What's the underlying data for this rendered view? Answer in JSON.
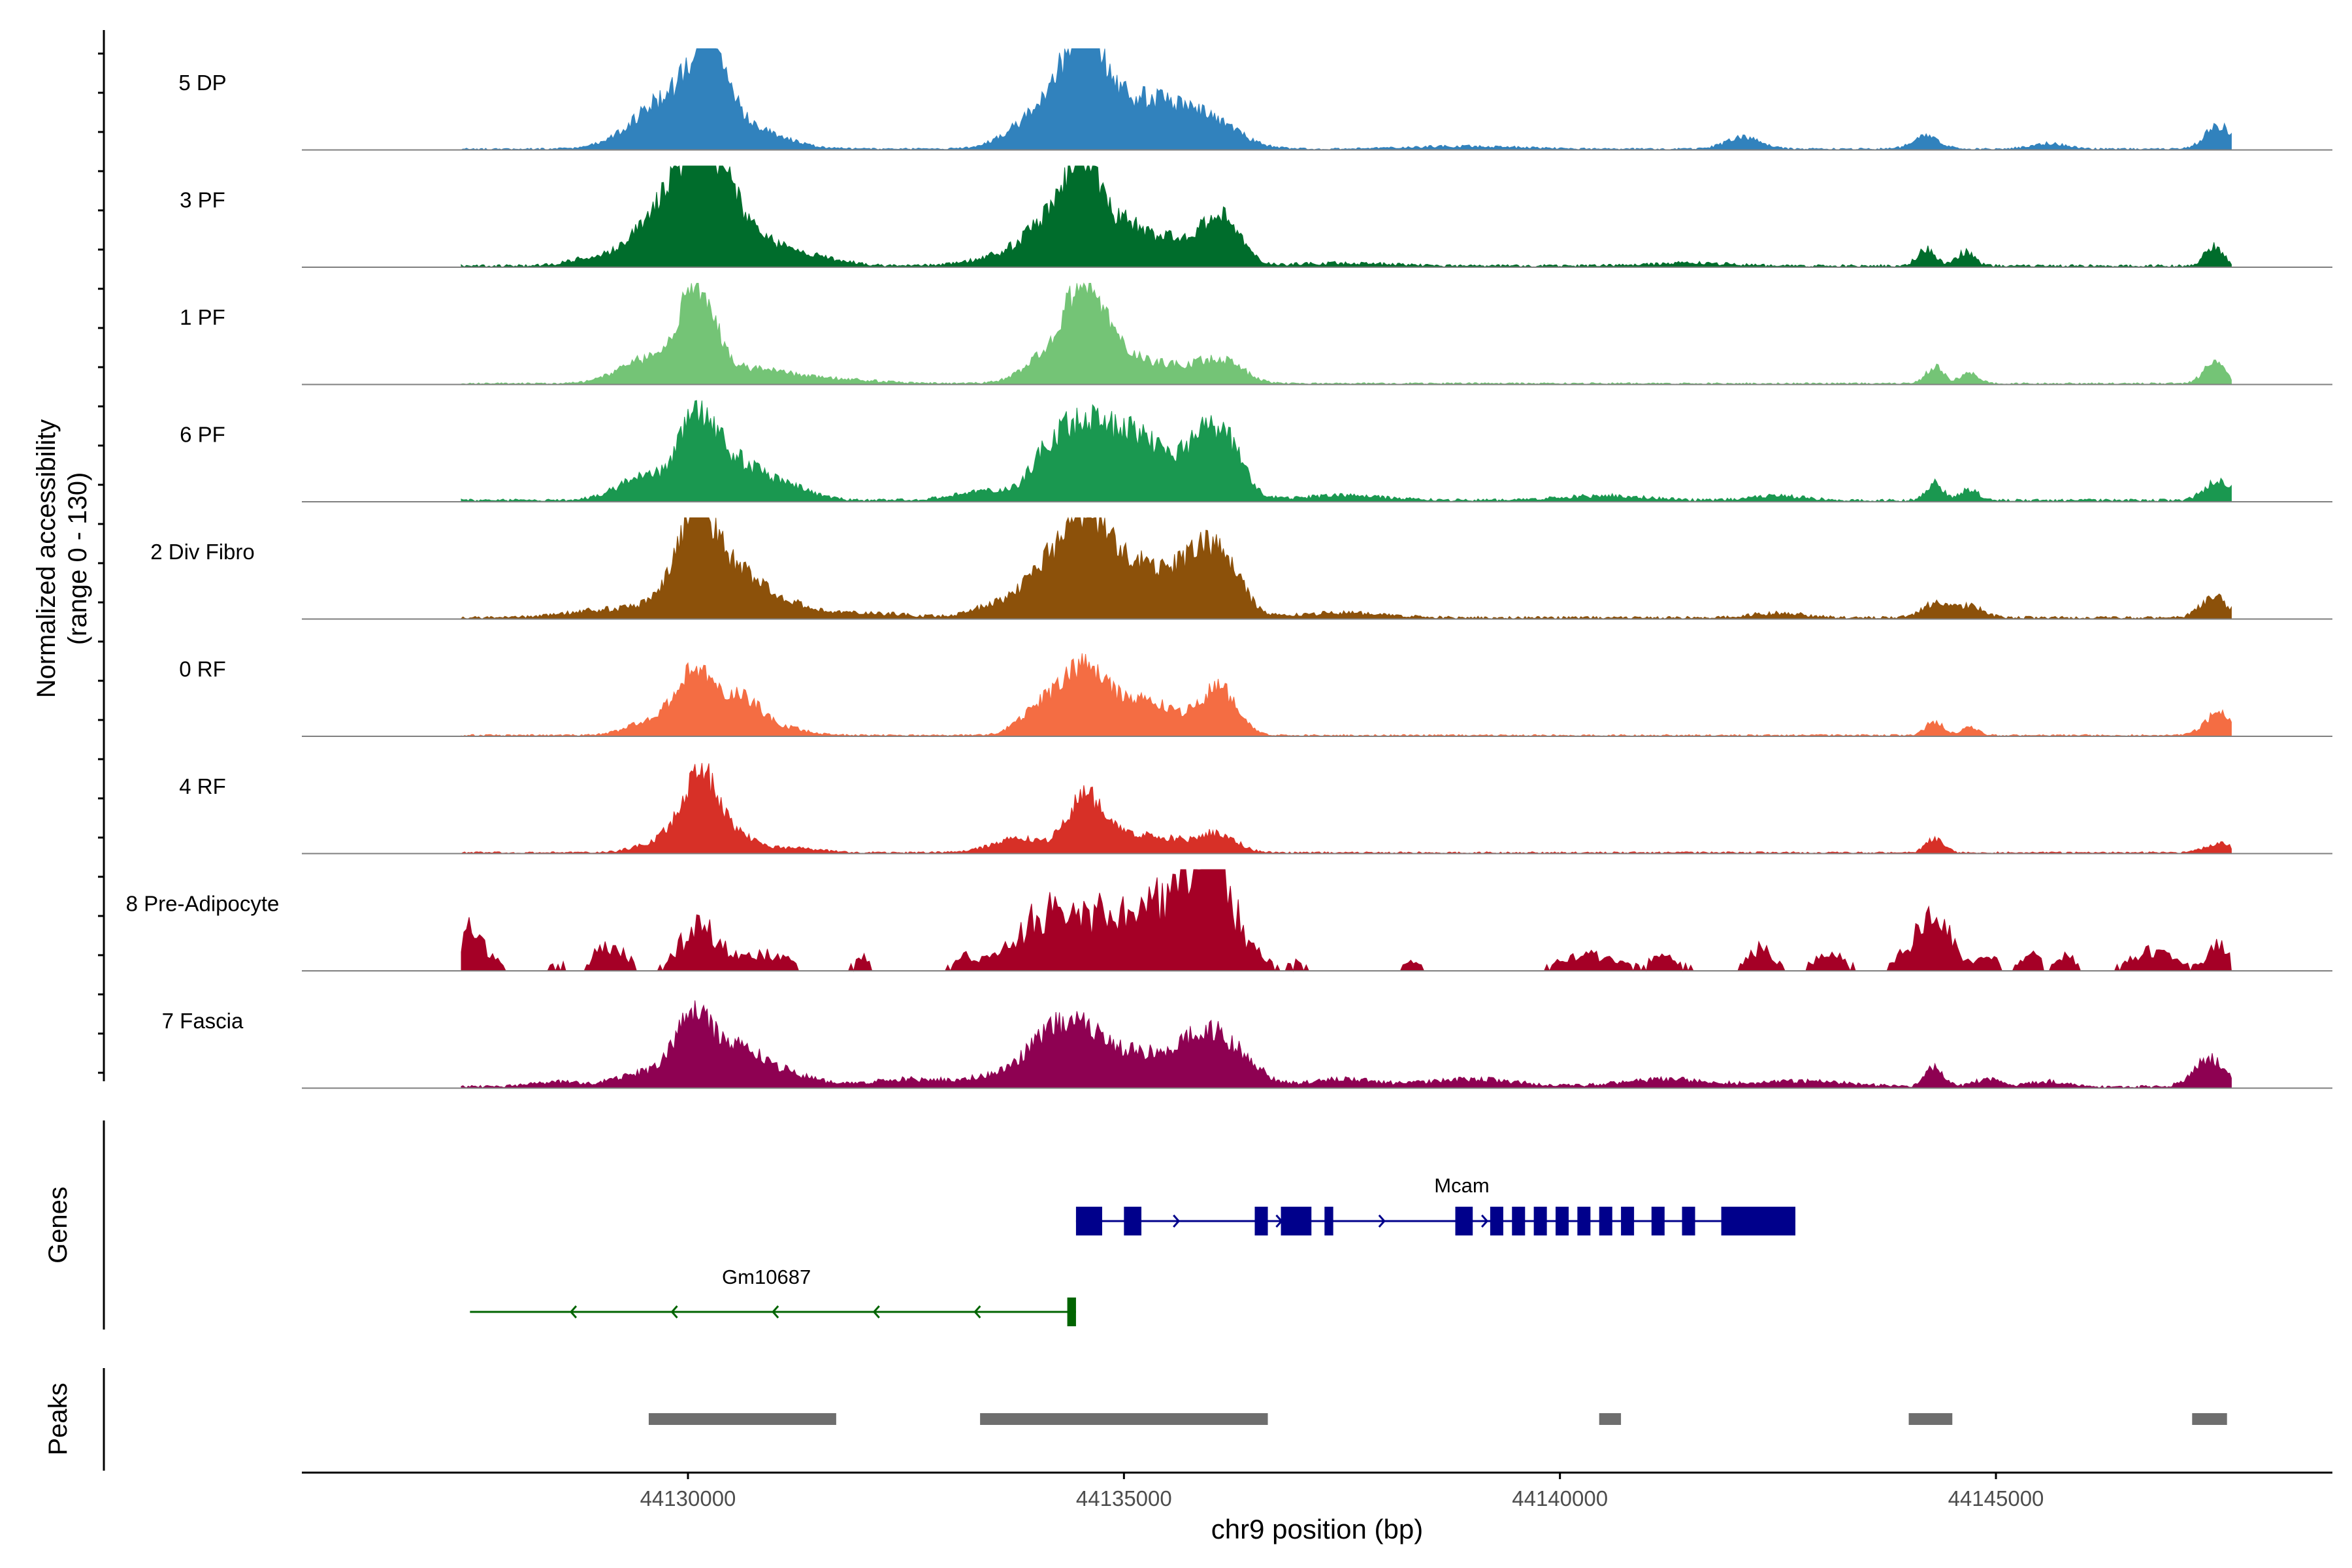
{
  "chart_data": {
    "type": "area",
    "ylabel": "Normalized accessibility",
    "ylabel_range": "(range 0 - 130)",
    "ylim": [
      0,
      130
    ],
    "xlabel": "chr9 position (bp)",
    "xlim": [
      44126300,
      44148500
    ],
    "xticks": [
      44130000,
      44135000,
      44140000,
      44145000
    ],
    "xtick_labels": [
      "44130000",
      "44135000",
      "44140000",
      "44145000"
    ],
    "track_labels": {
      "genes": "Genes",
      "peaks": "Peaks"
    },
    "tracks": [
      {
        "name": "5 DP",
        "color": "#3182BD",
        "baseline": 2,
        "peaks": [
          [
            44129800,
            55,
            400
          ],
          [
            44130250,
            95,
            200
          ],
          [
            44130700,
            20,
            400
          ],
          [
            44134100,
            40,
            350
          ],
          [
            44134550,
            95,
            220
          ],
          [
            44135000,
            40,
            450
          ],
          [
            44135600,
            30,
            400
          ],
          [
            44136100,
            15,
            300
          ],
          [
            44138900,
            3,
            600
          ],
          [
            44142100,
            12,
            200
          ],
          [
            44144200,
            14,
            150
          ],
          [
            44145600,
            6,
            200
          ],
          [
            44147550,
            25,
            150
          ]
        ]
      },
      {
        "name": "3 PF",
        "color": "#006D2C",
        "baseline": 3,
        "peaks": [
          [
            44129000,
            10,
            300
          ],
          [
            44129750,
            65,
            300
          ],
          [
            44130100,
            75,
            200
          ],
          [
            44130400,
            70,
            250
          ],
          [
            44130900,
            20,
            300
          ],
          [
            44131500,
            8,
            300
          ],
          [
            44133800,
            15,
            400
          ],
          [
            44134200,
            45,
            250
          ],
          [
            44134550,
            100,
            180
          ],
          [
            44135000,
            40,
            200
          ],
          [
            44135600,
            30,
            350
          ],
          [
            44136100,
            30,
            200
          ],
          [
            44136200,
            15,
            200
          ],
          [
            44137500,
            3,
            500
          ],
          [
            44141500,
            3,
            400
          ],
          [
            44144200,
            18,
            100
          ],
          [
            44144650,
            15,
            100
          ],
          [
            44147500,
            22,
            100
          ]
        ]
      },
      {
        "name": "1 PF",
        "color": "#74C476",
        "baseline": 2,
        "peaks": [
          [
            44129500,
            25,
            300
          ],
          [
            44130100,
            100,
            200
          ],
          [
            44130700,
            15,
            400
          ],
          [
            44131600,
            5,
            500
          ],
          [
            44134200,
            30,
            300
          ],
          [
            44134550,
            78,
            220
          ],
          [
            44135000,
            30,
            400
          ],
          [
            44135900,
            18,
            300
          ],
          [
            44136200,
            14,
            200
          ],
          [
            44144300,
            18,
            100
          ],
          [
            44144700,
            12,
            100
          ],
          [
            44147500,
            22,
            120
          ]
        ]
      },
      {
        "name": "6 PF",
        "color": "#1A9850",
        "baseline": 3,
        "peaks": [
          [
            44129500,
            25,
            300
          ],
          [
            44130100,
            80,
            200
          ],
          [
            44130500,
            40,
            300
          ],
          [
            44131100,
            15,
            300
          ],
          [
            44133500,
            10,
            400
          ],
          [
            44134200,
            60,
            220
          ],
          [
            44134600,
            70,
            200
          ],
          [
            44135000,
            55,
            220
          ],
          [
            44135400,
            45,
            250
          ],
          [
            44135900,
            55,
            200
          ],
          [
            44136200,
            50,
            200
          ],
          [
            44137500,
            5,
            500
          ],
          [
            44140500,
            5,
            500
          ],
          [
            44142500,
            5,
            300
          ],
          [
            44144300,
            18,
            100
          ],
          [
            44144700,
            12,
            100
          ],
          [
            44147550,
            22,
            150
          ]
        ]
      },
      {
        "name": "2 Div Fibro",
        "color": "#8C510A",
        "baseline": 3,
        "peaks": [
          [
            44129000,
            8,
            400
          ],
          [
            44129800,
            20,
            300
          ],
          [
            44130100,
            100,
            200
          ],
          [
            44130500,
            45,
            250
          ],
          [
            44131000,
            20,
            300
          ],
          [
            44132000,
            5,
            500
          ],
          [
            44133600,
            15,
            300
          ],
          [
            44134100,
            50,
            220
          ],
          [
            44134550,
            105,
            220
          ],
          [
            44135000,
            55,
            220
          ],
          [
            44135500,
            45,
            250
          ],
          [
            44135900,
            50,
            200
          ],
          [
            44136200,
            45,
            200
          ],
          [
            44137500,
            5,
            500
          ],
          [
            44142500,
            5,
            300
          ],
          [
            44144300,
            15,
            150
          ],
          [
            44144700,
            12,
            150
          ],
          [
            44147500,
            22,
            150
          ]
        ]
      },
      {
        "name": "0 RF",
        "color": "#F46D43",
        "baseline": 2,
        "peaks": [
          [
            44129700,
            20,
            300
          ],
          [
            44130100,
            60,
            200
          ],
          [
            44130600,
            38,
            200
          ],
          [
            44131000,
            10,
            300
          ],
          [
            44134100,
            35,
            250
          ],
          [
            44134550,
            58,
            220
          ],
          [
            44135000,
            30,
            300
          ],
          [
            44135500,
            22,
            300
          ],
          [
            44136100,
            48,
            200
          ],
          [
            44144300,
            15,
            100
          ],
          [
            44144700,
            8,
            100
          ],
          [
            44147550,
            24,
            150
          ]
        ]
      },
      {
        "name": "4 RF",
        "color": "#D73027",
        "baseline": 2,
        "peaks": [
          [
            44129800,
            15,
            300
          ],
          [
            44130150,
            80,
            200
          ],
          [
            44130600,
            15,
            200
          ],
          [
            44131200,
            5,
            300
          ],
          [
            44133800,
            15,
            300
          ],
          [
            44134550,
            55,
            200
          ],
          [
            44135000,
            18,
            300
          ],
          [
            44135600,
            12,
            300
          ],
          [
            44136100,
            18,
            200
          ],
          [
            44144300,
            15,
            100
          ],
          [
            44147550,
            10,
            150
          ]
        ]
      },
      {
        "name": "8 Pre-Adipocyte",
        "color": "#A50026",
        "baseline": 0,
        "jagged": true,
        "peaks": [
          [
            44127500,
            50,
            80
          ],
          [
            44127700,
            25,
            100
          ],
          [
            44128500,
            10,
            100
          ],
          [
            44129000,
            20,
            100
          ],
          [
            44129200,
            20,
            150
          ],
          [
            44130100,
            45,
            200
          ],
          [
            44130500,
            15,
            300
          ],
          [
            44131000,
            15,
            200
          ],
          [
            44132000,
            15,
            100
          ],
          [
            44133200,
            15,
            150
          ],
          [
            44134000,
            50,
            300
          ],
          [
            44134500,
            48,
            300
          ],
          [
            44135000,
            40,
            300
          ],
          [
            44135500,
            45,
            300
          ],
          [
            44135800,
            75,
            250
          ],
          [
            44136050,
            100,
            150
          ],
          [
            44136400,
            30,
            200
          ],
          [
            44137000,
            10,
            100
          ],
          [
            44138300,
            10,
            100
          ],
          [
            44140300,
            20,
            300
          ],
          [
            44141200,
            15,
            200
          ],
          [
            44142300,
            25,
            150
          ],
          [
            44143100,
            18,
            200
          ],
          [
            44144150,
            40,
            200
          ],
          [
            44144400,
            35,
            150
          ],
          [
            44144900,
            20,
            120
          ],
          [
            44145400,
            25,
            100
          ],
          [
            44145800,
            18,
            100
          ],
          [
            44146700,
            18,
            200
          ],
          [
            44147000,
            10,
            200
          ],
          [
            44147550,
            28,
            120
          ]
        ]
      },
      {
        "name": "7 Fascia",
        "color": "#8E0152",
        "baseline": 3,
        "peaks": [
          [
            44128500,
            5,
            300
          ],
          [
            44129500,
            15,
            300
          ],
          [
            44130050,
            65,
            200
          ],
          [
            44130500,
            35,
            300
          ],
          [
            44131000,
            15,
            400
          ],
          [
            44132500,
            8,
            400
          ],
          [
            44133600,
            12,
            400
          ],
          [
            44134100,
            40,
            250
          ],
          [
            44134500,
            50,
            250
          ],
          [
            44135000,
            30,
            300
          ],
          [
            44135500,
            20,
            300
          ],
          [
            44135900,
            45,
            250
          ],
          [
            44136300,
            30,
            250
          ],
          [
            44137500,
            8,
            400
          ],
          [
            44139000,
            8,
            500
          ],
          [
            44141200,
            8,
            500
          ],
          [
            44142800,
            6,
            500
          ],
          [
            44144300,
            22,
            100
          ],
          [
            44144900,
            8,
            150
          ],
          [
            44145600,
            6,
            200
          ],
          [
            44147450,
            30,
            180
          ]
        ]
      }
    ],
    "genes": [
      {
        "name": "Mcam",
        "strand": "+",
        "color": "#00008B",
        "start": 44134450,
        "end": 44142700,
        "exons": [
          [
            44134450,
            44134750
          ],
          [
            44135000,
            44135200
          ],
          [
            44136500,
            44136650
          ],
          [
            44136800,
            44137150
          ],
          [
            44137300,
            44137400
          ],
          [
            44138800,
            44139000
          ],
          [
            44139200,
            44139350
          ],
          [
            44139450,
            44139600
          ],
          [
            44139700,
            44139850
          ],
          [
            44139950,
            44140100
          ],
          [
            44140200,
            44140350
          ],
          [
            44140450,
            44140600
          ],
          [
            44140700,
            44140850
          ],
          [
            44141050,
            44141200
          ],
          [
            44141400,
            44141550
          ],
          [
            44141850,
            44142700
          ]
        ]
      },
      {
        "name": "Gm10687",
        "strand": "-",
        "color": "#006400",
        "start": 44127500,
        "end": 44134450,
        "exons": [
          [
            44134350,
            44134450
          ]
        ]
      }
    ],
    "peaks": [
      [
        44129550,
        44131700
      ],
      [
        44133350,
        44136650
      ],
      [
        44140450,
        44140700
      ],
      [
        44144000,
        44144500
      ],
      [
        44147250,
        44147650
      ]
    ]
  }
}
